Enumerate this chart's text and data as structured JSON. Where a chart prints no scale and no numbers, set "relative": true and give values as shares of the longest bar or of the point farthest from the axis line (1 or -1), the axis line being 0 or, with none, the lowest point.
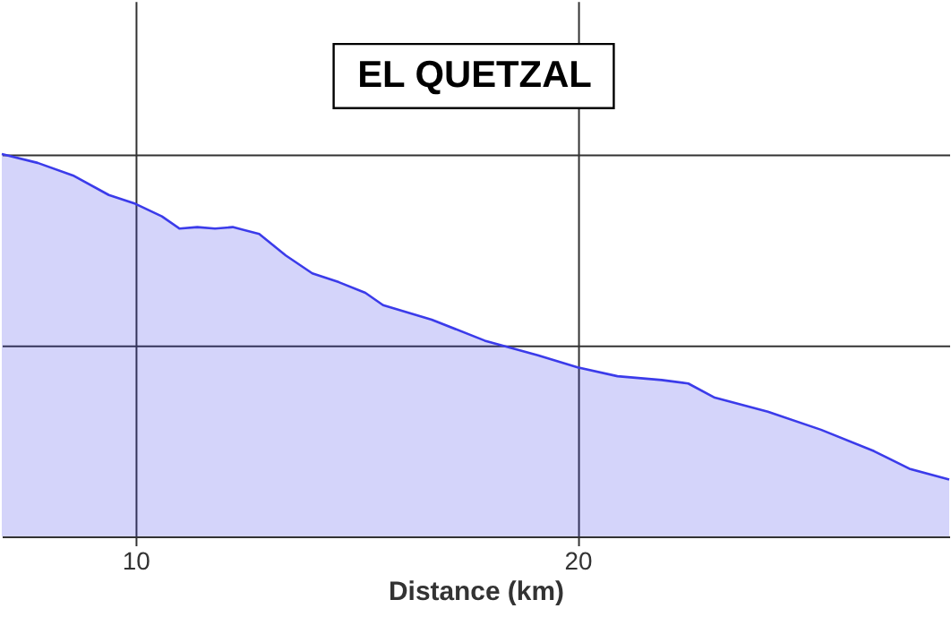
{
  "chart_data": {
    "type": "area",
    "title": "EL QUETZAL",
    "xlabel": "Distance (km)",
    "relative": true,
    "grid": true,
    "tick_labels": "x",
    "xlim": [
      6.98,
      28.4
    ],
    "xticks": [
      10,
      20
    ],
    "x": [
      6.98,
      7.79,
      8.59,
      9.4,
      10.0,
      10.6,
      11.0,
      11.4,
      11.8,
      12.2,
      12.8,
      13.4,
      14.0,
      14.6,
      15.2,
      15.6,
      16.7,
      17.9,
      19.1,
      20.0,
      20.9,
      21.9,
      22.5,
      23.1,
      24.3,
      25.5,
      26.7,
      27.5,
      28.4
    ],
    "series": [
      {
        "color": "#3b3bea",
        "values": [
          1.0,
          0.977,
          0.944,
          0.893,
          0.87,
          0.837,
          0.805,
          0.809,
          0.805,
          0.809,
          0.791,
          0.735,
          0.688,
          0.665,
          0.637,
          0.605,
          0.567,
          0.512,
          0.474,
          0.442,
          0.419,
          0.409,
          0.4,
          0.363,
          0.326,
          0.279,
          0.223,
          0.177,
          0.149
        ]
      }
    ]
  }
}
